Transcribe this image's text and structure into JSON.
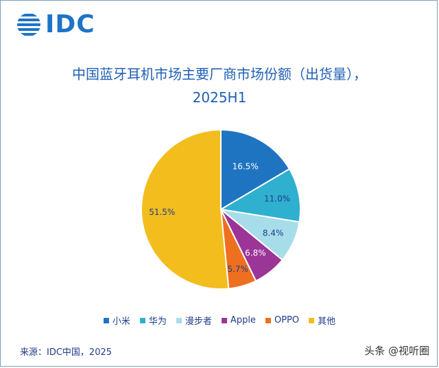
{
  "logo": {
    "text": "IDC"
  },
  "chart_data": {
    "type": "pie",
    "title_line1": "中国蓝牙耳机市场主要厂商市场份额（出货量），",
    "title_line2": "2025H1",
    "slices": [
      {
        "label": "小米",
        "value": 16.5,
        "display": "16.5%",
        "color": "#1f74c2"
      },
      {
        "label": "华为",
        "value": 11.0,
        "display": "11.0%",
        "color": "#2fb0cf"
      },
      {
        "label": "漫步者",
        "value": 8.4,
        "display": "8.4%",
        "color": "#a7dde9"
      },
      {
        "label": "Apple",
        "value": 6.8,
        "display": "6.8%",
        "color": "#9b3597"
      },
      {
        "label": "OPPO",
        "value": 5.7,
        "display": "5.7%",
        "color": "#ef6f21"
      },
      {
        "label": "其他",
        "value": 51.5,
        "display": "51.5%",
        "color": "#f2bd1d"
      }
    ],
    "legend_placement": "bottom"
  },
  "source": "来源：IDC中国，2025",
  "watermark": "头条 @视听圈"
}
